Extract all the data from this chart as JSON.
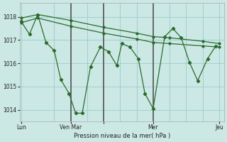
{
  "bg_color": "#cbe8e4",
  "line_color": "#2d6b2d",
  "grid_color": "#99cccc",
  "xlabel": "Pression niveau de la mer( hPa )",
  "ylim": [
    1013.5,
    1018.6
  ],
  "yticks": [
    1014,
    1015,
    1016,
    1017,
    1018
  ],
  "xlim": [
    -0.05,
    6.15
  ],
  "xtick_pos": [
    0,
    1.5,
    2.5,
    4.0,
    6.0
  ],
  "xtick_labels": [
    "Lun",
    "Ven Mar",
    "",
    "Mer",
    "Jeu"
  ],
  "series_main_x": [
    0.0,
    0.25,
    0.5,
    0.75,
    1.0,
    1.2,
    1.45,
    1.65,
    1.85,
    2.1,
    2.4,
    2.65,
    2.9,
    3.05,
    3.3,
    3.55,
    3.75,
    4.0,
    4.35,
    4.6,
    4.85,
    5.1,
    5.35,
    5.65,
    5.9
  ],
  "series_main_y": [
    1017.8,
    1017.25,
    1018.1,
    1016.9,
    1016.55,
    1015.3,
    1014.7,
    1013.85,
    1013.85,
    1015.85,
    1016.7,
    1016.5,
    1015.9,
    1016.85,
    1016.7,
    1016.2,
    1014.7,
    1014.05,
    1017.15,
    1017.5,
    1017.1,
    1016.05,
    1015.25,
    1016.2,
    1016.75
  ],
  "series_upper_x": [
    0.0,
    0.5,
    1.5,
    2.5,
    3.5,
    4.0,
    4.5,
    5.5,
    6.0
  ],
  "series_upper_y": [
    1017.95,
    1018.1,
    1017.85,
    1017.55,
    1017.3,
    1017.15,
    1017.1,
    1016.95,
    1016.85
  ],
  "series_lower_x": [
    0.0,
    0.5,
    1.5,
    2.5,
    3.5,
    4.0,
    4.5,
    5.5,
    6.0
  ],
  "series_lower_y": [
    1017.75,
    1017.95,
    1017.6,
    1017.3,
    1017.05,
    1016.9,
    1016.85,
    1016.75,
    1016.7
  ]
}
